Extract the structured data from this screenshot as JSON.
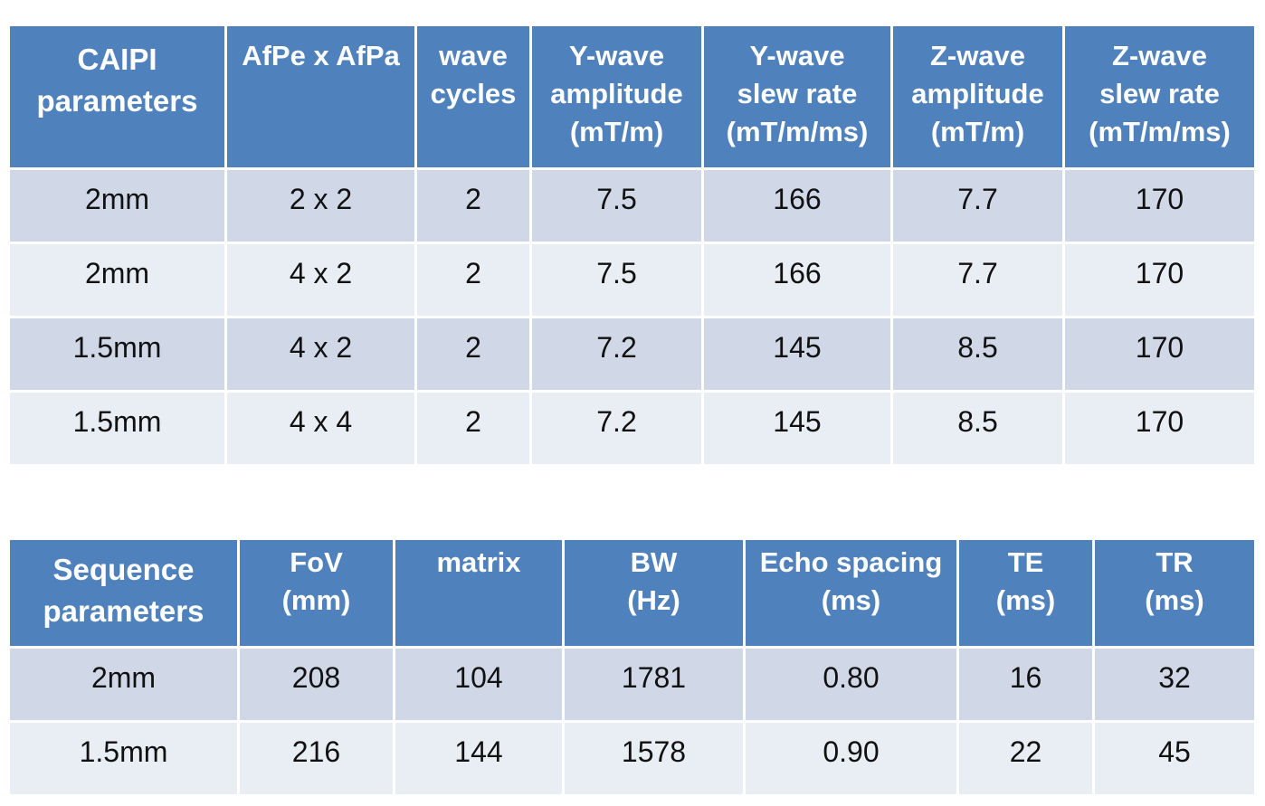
{
  "caipi_table": {
    "header": [
      [
        "CAIPI",
        "parameters"
      ],
      [
        "AfPe x AfPa"
      ],
      [
        "wave",
        "cycles"
      ],
      [
        "Y-wave",
        "amplitude",
        "(mT/m)"
      ],
      [
        "Y-wave",
        "slew rate",
        "(mT/m/ms)"
      ],
      [
        "Z-wave",
        "amplitude",
        "(mT/m)"
      ],
      [
        "Z-wave",
        "slew rate",
        "(mT/m/ms)"
      ]
    ],
    "rows": [
      [
        "2mm",
        "2 x 2",
        "2",
        "7.5",
        "166",
        "7.7",
        "170"
      ],
      [
        "2mm",
        "4 x 2",
        "2",
        "7.5",
        "166",
        "7.7",
        "170"
      ],
      [
        "1.5mm",
        "4 x 2",
        "2",
        "7.2",
        "145",
        "8.5",
        "170"
      ],
      [
        "1.5mm",
        "4 x 4",
        "2",
        "7.2",
        "145",
        "8.5",
        "170"
      ]
    ]
  },
  "sequence_table": {
    "header": [
      [
        "Sequence",
        "parameters"
      ],
      [
        "FoV",
        "(mm)"
      ],
      [
        "matrix"
      ],
      [
        "BW",
        "(Hz)"
      ],
      [
        "Echo spacing",
        "(ms)"
      ],
      [
        "TE",
        "(ms)"
      ],
      [
        "TR",
        "(ms)"
      ]
    ],
    "rows": [
      [
        "2mm",
        "208",
        "104",
        "1781",
        "0.80",
        "16",
        "32"
      ],
      [
        "1.5mm",
        "216",
        "144",
        "1578",
        "0.90",
        "22",
        "45"
      ]
    ]
  },
  "colors": {
    "header_bg": "#4f81bd",
    "row_dark": "#d0d8e8",
    "row_light": "#e9edf4"
  }
}
